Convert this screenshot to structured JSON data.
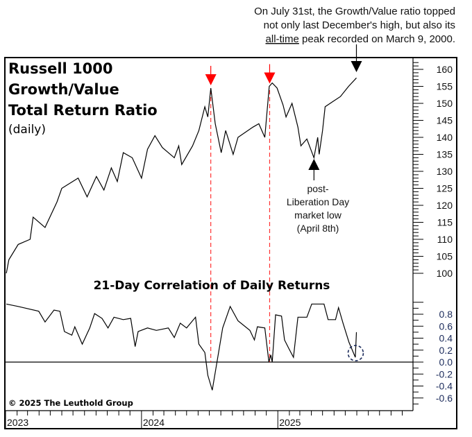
{
  "annotation_top": {
    "line1": "On July 31st, the Growth/Value ratio topped",
    "line2": "not only last December's high, but also its",
    "line3_underlined": "all-time",
    "line3_rest": " peak recorded on March 9, 2000."
  },
  "annotation_low": {
    "line1": "post-",
    "line2": "Liberation Day",
    "line3": "market low",
    "line4": "(April 8th)"
  },
  "copyright": "© 2025 The Leuthold Group",
  "colors": {
    "line": "#000000",
    "marker_red": "#ff0000",
    "dashed_red": "#ff3030",
    "circle": "#1a2a5a",
    "axis_labels_bottom": "#1a2a5a"
  },
  "chart_data": [
    {
      "type": "line",
      "title_lines": [
        "Russell 1000",
        "Growth/Value",
        "Total Return Ratio"
      ],
      "subtitle": "(daily)",
      "x_ticks": [
        "2023",
        "2024",
        "2025"
      ],
      "ylim": [
        100,
        160
      ],
      "y_ticks": [
        160,
        155,
        150,
        145,
        140,
        135,
        130,
        125,
        120,
        115,
        110,
        105,
        100
      ],
      "y_axis_side": "right",
      "grid": false,
      "series": [
        {
          "points": [
            [
              "2023-01-03",
              100
            ],
            [
              "2023-01-10",
              104
            ],
            [
              "2023-02-04",
              108.5
            ],
            [
              "2023-03-08",
              110
            ],
            [
              "2023-03-16",
              116.5
            ],
            [
              "2023-04-17",
              113.5
            ],
            [
              "2023-05-19",
              121
            ],
            [
              "2023-06-01",
              125
            ],
            [
              "2023-07-15",
              128
            ],
            [
              "2023-08-08",
              122.5
            ],
            [
              "2023-09-02",
              128.5
            ],
            [
              "2023-09-22",
              124.5
            ],
            [
              "2023-10-12",
              131
            ],
            [
              "2023-10-28",
              127
            ],
            [
              "2023-11-13",
              135.5
            ],
            [
              "2023-12-07",
              134
            ],
            [
              "2024-01-01",
              128
            ],
            [
              "2024-01-17",
              136.5
            ],
            [
              "2024-02-06",
              140.5
            ],
            [
              "2024-02-26",
              137
            ],
            [
              "2024-03-13",
              135.5
            ],
            [
              "2024-03-29",
              134
            ],
            [
              "2024-04-10",
              137.5
            ],
            [
              "2024-04-18",
              132
            ],
            [
              "2024-05-17",
              137.5
            ],
            [
              "2024-06-03",
              142
            ],
            [
              "2024-06-19",
              149
            ],
            [
              "2024-06-27",
              146
            ],
            [
              "2024-07-05",
              154.5
            ],
            [
              "2024-07-17",
              144
            ],
            [
              "2024-08-02",
              135.5
            ],
            [
              "2024-08-14",
              142
            ],
            [
              "2024-09-03",
              135
            ],
            [
              "2024-09-16",
              140
            ],
            [
              "2024-10-26",
              143
            ],
            [
              "2024-11-11",
              144
            ],
            [
              "2024-11-27",
              140
            ],
            [
              "2024-12-09",
              155
            ],
            [
              "2024-12-17",
              156
            ],
            [
              "2024-12-30",
              154.5
            ],
            [
              "2025-01-15",
              149.5
            ],
            [
              "2025-01-23",
              146
            ],
            [
              "2025-02-08",
              150
            ],
            [
              "2025-02-24",
              143
            ],
            [
              "2025-03-04",
              137.5
            ],
            [
              "2025-03-20",
              139.5
            ],
            [
              "2025-04-08",
              134
            ],
            [
              "2025-04-18",
              140
            ],
            [
              "2025-04-22",
              135
            ],
            [
              "2025-05-01",
              142
            ],
            [
              "2025-05-08",
              149
            ],
            [
              "2025-05-28",
              150.5
            ],
            [
              "2025-06-18",
              152
            ],
            [
              "2025-07-10",
              155
            ],
            [
              "2025-07-31",
              157.5
            ]
          ]
        }
      ],
      "markers": [
        {
          "type": "red-down-arrow",
          "date": "2024-07-05"
        },
        {
          "type": "red-down-arrow",
          "date": "2024-12-10"
        },
        {
          "type": "black-down-arrow",
          "date": "2025-07-31"
        },
        {
          "type": "black-up-arrow",
          "date": "2025-04-08"
        }
      ],
      "vertical_dashed_lines": [
        "2024-07-05",
        "2024-12-10"
      ]
    },
    {
      "type": "line",
      "title": "21-Day Correlation of Daily Returns",
      "ylim": [
        -0.7,
        1.0
      ],
      "y_ticks": [
        "0.8",
        "0.6",
        "0.4",
        "0.2",
        "0.0",
        "-0.2",
        "-0.4",
        "-0.6"
      ],
      "reference_line": 0,
      "grid": false,
      "series": [
        {
          "points": [
            [
              "2023-01-03",
              0.97
            ],
            [
              "2023-02-04",
              0.93
            ],
            [
              "2023-03-31",
              0.85
            ],
            [
              "2023-04-17",
              0.67
            ],
            [
              "2023-05-11",
              0.87
            ],
            [
              "2023-05-27",
              0.85
            ],
            [
              "2023-06-08",
              0.51
            ],
            [
              "2023-06-28",
              0.45
            ],
            [
              "2023-07-06",
              0.59
            ],
            [
              "2023-07-26",
              0.3
            ],
            [
              "2023-08-15",
              0.57
            ],
            [
              "2023-08-28",
              0.81
            ],
            [
              "2023-09-17",
              0.73
            ],
            [
              "2023-10-03",
              0.57
            ],
            [
              "2023-10-19",
              0.75
            ],
            [
              "2023-11-13",
              0.71
            ],
            [
              "2023-12-03",
              0.73
            ],
            [
              "2023-12-15",
              0.26
            ],
            [
              "2023-12-23",
              0.51
            ],
            [
              "2024-01-17",
              0.57
            ],
            [
              "2024-02-10",
              0.53
            ],
            [
              "2024-03-13",
              0.57
            ],
            [
              "2024-03-29",
              0.41
            ],
            [
              "2024-04-14",
              0.65
            ],
            [
              "2024-05-01",
              0.57
            ],
            [
              "2024-05-25",
              0.75
            ],
            [
              "2024-06-03",
              0.3
            ],
            [
              "2024-06-19",
              0.16
            ],
            [
              "2024-06-27",
              -0.22
            ],
            [
              "2024-07-09",
              -0.47
            ],
            [
              "2024-07-21",
              -0.02
            ],
            [
              "2024-08-06",
              0.57
            ],
            [
              "2024-08-26",
              0.93
            ],
            [
              "2024-09-16",
              0.69
            ],
            [
              "2024-10-18",
              0.53
            ],
            [
              "2024-10-30",
              0.37
            ],
            [
              "2024-11-07",
              0.59
            ],
            [
              "2024-11-27",
              0.57
            ],
            [
              "2024-12-08",
              0.0
            ],
            [
              "2024-12-13",
              0.12
            ],
            [
              "2024-12-17",
              0.0
            ],
            [
              "2024-12-26",
              0.79
            ],
            [
              "2025-01-11",
              0.77
            ],
            [
              "2025-01-19",
              0.37
            ],
            [
              "2025-01-31",
              0.22
            ],
            [
              "2025-02-12",
              0.08
            ],
            [
              "2025-02-24",
              0.75
            ],
            [
              "2025-03-20",
              0.75
            ],
            [
              "2025-04-02",
              0.97
            ],
            [
              "2025-05-05",
              0.97
            ],
            [
              "2025-05-16",
              0.71
            ],
            [
              "2025-06-05",
              0.71
            ],
            [
              "2025-06-13",
              0.91
            ],
            [
              "2025-06-25",
              0.65
            ],
            [
              "2025-07-11",
              0.33
            ],
            [
              "2025-07-28",
              0.08
            ],
            [
              "2025-07-31",
              0.5
            ]
          ]
        }
      ],
      "highlight": {
        "type": "dashed-circle",
        "date": "2025-07-29"
      }
    }
  ]
}
